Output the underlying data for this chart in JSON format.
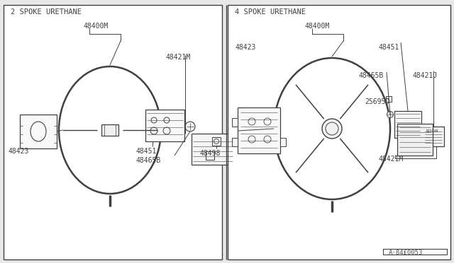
{
  "bg_color": "#e8e8e8",
  "panel_bg": "#ffffff",
  "line_color": "#404040",
  "text_color": "#404040",
  "title_left": "2 SPOKE URETHANE",
  "title_right": "4 SPOKE URETHANE",
  "footnote": "A·84£0053",
  "fig_w": 6.4,
  "fig_h": 3.72,
  "dpi": 100
}
